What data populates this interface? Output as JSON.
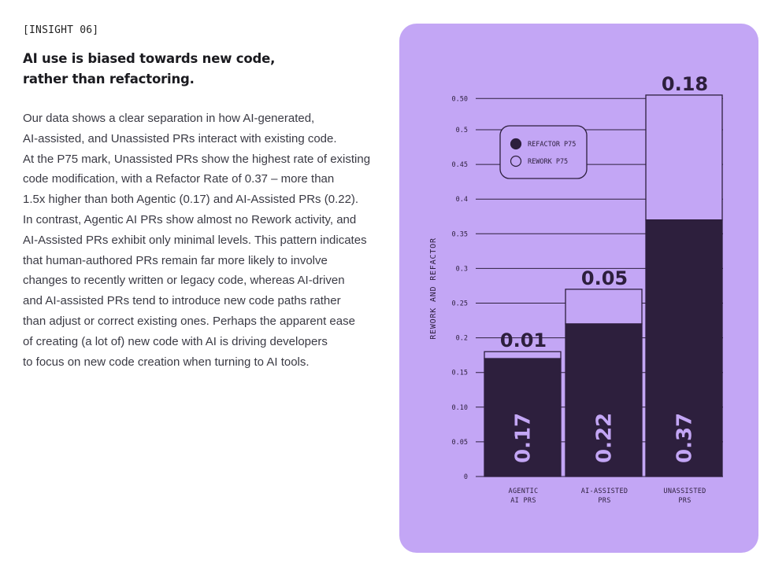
{
  "tag": "[INSIGHT 06]",
  "heading": [
    "AI use is biased towards new code,",
    "rather than refactoring."
  ],
  "body": [
    "Our data shows a clear separation in how AI-generated,",
    "AI-assisted, and Unassisted PRs interact with existing code.",
    "At the P75 mark, Unassisted PRs show the highest rate of existing",
    "code modification, with a Refactor Rate of 0.37 – more than",
    "1.5x higher than both Agentic (0.17) and AI-Assisted PRs (0.22).",
    "In contrast, Agentic AI PRs show almost no Rework activity, and",
    "AI-Assisted PRs exhibit only minimal levels. This pattern indicates",
    "that human-authored PRs remain far more likely to involve",
    "changes to recently written or legacy code, whereas AI-driven",
    "and AI-assisted PRs tend to introduce new code paths rather",
    "than adjust or correct existing ones. Perhaps the apparent ease",
    "of creating (a lot of) new code with AI is driving developers",
    "to focus on new code creation when turning to AI tools."
  ],
  "colors": {
    "panel": "#c3a6f5",
    "refactor": "#2d1f3d",
    "rework": "#c3a6f5",
    "line": "#2d1f3d"
  },
  "chart_data": {
    "type": "bar",
    "stacked": true,
    "categories": [
      [
        "AGENTIC",
        "AI PRS"
      ],
      [
        "AI-ASSISTED",
        "PRS"
      ],
      [
        "UNASSISTED",
        "PRS"
      ]
    ],
    "series": [
      {
        "name": "REFACTOR P75",
        "values": [
          0.17,
          0.22,
          0.37
        ],
        "labels": [
          "0.17",
          "0.22",
          "0.37"
        ]
      },
      {
        "name": "REWORK P75",
        "values": [
          0.01,
          0.05,
          0.18
        ],
        "labels": [
          "0.01",
          "0.05",
          "0.18"
        ]
      }
    ],
    "ylabel": "REWORK AND REFACTOR",
    "ylim": [
      0,
      0.55
    ],
    "yticks": [
      "0",
      "0.05",
      "0.10",
      "0.15",
      "0.2",
      "0.25",
      "0.3",
      "0.35",
      "0.4",
      "0.45",
      "0.5",
      "0.50"
    ],
    "grid": true,
    "legend_position": "top-left"
  }
}
